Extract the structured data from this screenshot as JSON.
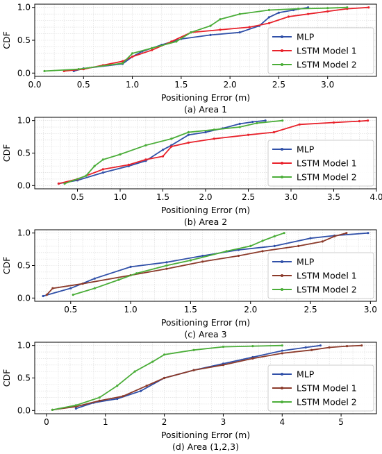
{
  "chart_data": [
    {
      "type": "line",
      "caption": "(a) Area 1",
      "xlabel": "Positioning Error (m)",
      "ylabel": "CDF",
      "xlim": [
        0,
        3.5
      ],
      "ylim": [
        0,
        1.0
      ],
      "xticks": [
        "0.0",
        "0.5",
        "1.0",
        "1.5",
        "2.0",
        "2.5",
        "3.0"
      ],
      "yticks": [
        "0.0",
        "0.5",
        "1.0"
      ],
      "grid": true,
      "legend_position": "lower-right",
      "series": [
        {
          "name": "MLP",
          "color": "#3050a8",
          "x": [
            0.4,
            0.5,
            0.9,
            1.0,
            1.1,
            1.3,
            1.5,
            1.8,
            2.1,
            2.3,
            2.4,
            2.5,
            2.65,
            2.8
          ],
          "y": [
            0.03,
            0.07,
            0.14,
            0.25,
            0.33,
            0.43,
            0.52,
            0.58,
            0.62,
            0.72,
            0.85,
            0.92,
            0.96,
            1.0
          ]
        },
        {
          "name": "LSTM Model 1",
          "color": "#e8212a",
          "x": [
            0.3,
            0.5,
            0.7,
            0.9,
            1.0,
            1.2,
            1.4,
            1.6,
            1.9,
            2.2,
            2.4,
            2.6,
            2.8,
            3.0,
            3.2,
            3.42
          ],
          "y": [
            0.03,
            0.06,
            0.12,
            0.18,
            0.25,
            0.35,
            0.48,
            0.62,
            0.66,
            0.7,
            0.76,
            0.86,
            0.9,
            0.94,
            0.98,
            1.0
          ]
        },
        {
          "name": "LSTM Model 2",
          "color": "#4aad38",
          "x": [
            0.1,
            0.45,
            0.9,
            1.0,
            1.2,
            1.45,
            1.6,
            1.8,
            1.9,
            2.1,
            2.4,
            2.7,
            3.0,
            3.2
          ],
          "y": [
            0.03,
            0.06,
            0.15,
            0.3,
            0.38,
            0.48,
            0.62,
            0.72,
            0.82,
            0.9,
            0.96,
            0.98,
            0.99,
            1.0
          ]
        }
      ]
    },
    {
      "type": "line",
      "caption": "(b) Area 2",
      "xlabel": "Positioning Error (m)",
      "ylabel": "CDF",
      "xlim": [
        0,
        4.0
      ],
      "ylim": [
        0,
        1.0
      ],
      "xticks": [
        "0.5",
        "1.0",
        "1.5",
        "2.0",
        "2.5",
        "3.0",
        "3.5",
        "4.0"
      ],
      "yticks": [
        "0.0",
        "0.5",
        "1.0"
      ],
      "grid": true,
      "legend_position": "lower-right",
      "series": [
        {
          "name": "MLP",
          "color": "#3050a8",
          "x": [
            0.28,
            0.5,
            0.8,
            1.1,
            1.3,
            1.5,
            1.6,
            1.8,
            2.0,
            2.2,
            2.4,
            2.55,
            2.7
          ],
          "y": [
            0.03,
            0.08,
            0.2,
            0.3,
            0.38,
            0.55,
            0.62,
            0.78,
            0.82,
            0.88,
            0.95,
            0.98,
            1.0
          ]
        },
        {
          "name": "LSTM Model 1",
          "color": "#e8212a",
          "x": [
            0.28,
            0.5,
            0.8,
            1.1,
            1.3,
            1.5,
            1.6,
            1.8,
            2.1,
            2.5,
            2.8,
            3.1,
            3.5,
            3.8,
            3.9
          ],
          "y": [
            0.03,
            0.1,
            0.25,
            0.32,
            0.4,
            0.45,
            0.6,
            0.66,
            0.72,
            0.78,
            0.82,
            0.94,
            0.97,
            0.99,
            1.0
          ]
        },
        {
          "name": "LSTM Model 2",
          "color": "#4aad38",
          "x": [
            0.35,
            0.6,
            0.7,
            0.8,
            1.0,
            1.3,
            1.6,
            1.8,
            2.1,
            2.4,
            2.6,
            2.9
          ],
          "y": [
            0.03,
            0.15,
            0.3,
            0.4,
            0.48,
            0.62,
            0.72,
            0.82,
            0.86,
            0.9,
            0.96,
            1.0
          ]
        }
      ]
    },
    {
      "type": "line",
      "caption": "(c) Area 3",
      "xlabel": "Positioning Error (m)",
      "ylabel": "CDF",
      "xlim": [
        0.2,
        3.05
      ],
      "ylim": [
        0,
        1.0
      ],
      "xticks": [
        "0.5",
        "1.0",
        "1.5",
        "2.0",
        "2.5",
        "3.0"
      ],
      "yticks": [
        "0.0",
        "0.5",
        "1.0"
      ],
      "grid": true,
      "legend_position": "lower-right",
      "series": [
        {
          "name": "MLP",
          "color": "#3050a8",
          "x": [
            0.27,
            0.5,
            0.7,
            1.0,
            1.3,
            1.6,
            1.9,
            2.2,
            2.5,
            2.7,
            2.98
          ],
          "y": [
            0.03,
            0.15,
            0.3,
            0.48,
            0.55,
            0.65,
            0.74,
            0.8,
            0.92,
            0.96,
            1.0
          ]
        },
        {
          "name": "LSTM Model 1",
          "color": "#8b3a2a",
          "x": [
            0.3,
            0.35,
            0.6,
            1.0,
            1.3,
            1.6,
            1.9,
            2.1,
            2.4,
            2.6,
            2.7,
            2.8
          ],
          "y": [
            0.05,
            0.15,
            0.22,
            0.35,
            0.45,
            0.56,
            0.65,
            0.72,
            0.8,
            0.87,
            0.95,
            1.0
          ]
        },
        {
          "name": "LSTM Model 2",
          "color": "#4aad38",
          "x": [
            0.52,
            0.7,
            0.9,
            1.05,
            1.3,
            1.5,
            1.8,
            2.0,
            2.1,
            2.2,
            2.28
          ],
          "y": [
            0.05,
            0.15,
            0.28,
            0.38,
            0.5,
            0.58,
            0.72,
            0.8,
            0.88,
            0.95,
            1.0
          ]
        }
      ]
    },
    {
      "type": "line",
      "caption": "(d) Area (1,2,3)",
      "xlabel": "Positioning Error (m)",
      "ylabel": "CDF",
      "xlim": [
        -0.2,
        5.6
      ],
      "ylim": [
        0,
        1.0
      ],
      "xticks": [
        "0",
        "1",
        "2",
        "3",
        "4",
        "5"
      ],
      "yticks": [
        "0.0",
        "0.5",
        "1.0"
      ],
      "grid": true,
      "legend_position": "lower-right",
      "series": [
        {
          "name": "MLP",
          "color": "#3050a8",
          "x": [
            0.5,
            0.8,
            1.2,
            1.6,
            2.0,
            2.5,
            3.0,
            3.5,
            4.0,
            4.4,
            4.65
          ],
          "y": [
            0.03,
            0.12,
            0.18,
            0.3,
            0.5,
            0.62,
            0.72,
            0.82,
            0.92,
            0.97,
            1.0
          ]
        },
        {
          "name": "LSTM Model 1",
          "color": "#8b3a2a",
          "x": [
            0.1,
            0.5,
            0.9,
            1.3,
            1.7,
            2.0,
            2.5,
            3.0,
            3.5,
            4.0,
            4.5,
            4.8,
            5.1,
            5.35
          ],
          "y": [
            0.01,
            0.06,
            0.15,
            0.22,
            0.38,
            0.5,
            0.62,
            0.7,
            0.8,
            0.88,
            0.93,
            0.97,
            0.99,
            1.0
          ]
        },
        {
          "name": "LSTM Model 2",
          "color": "#4aad38",
          "x": [
            0.1,
            0.5,
            0.9,
            1.2,
            1.5,
            1.8,
            2.0,
            2.5,
            3.0,
            3.5,
            4.0
          ],
          "y": [
            0.01,
            0.08,
            0.2,
            0.38,
            0.6,
            0.75,
            0.86,
            0.93,
            0.98,
            0.99,
            1.0
          ]
        }
      ]
    }
  ]
}
